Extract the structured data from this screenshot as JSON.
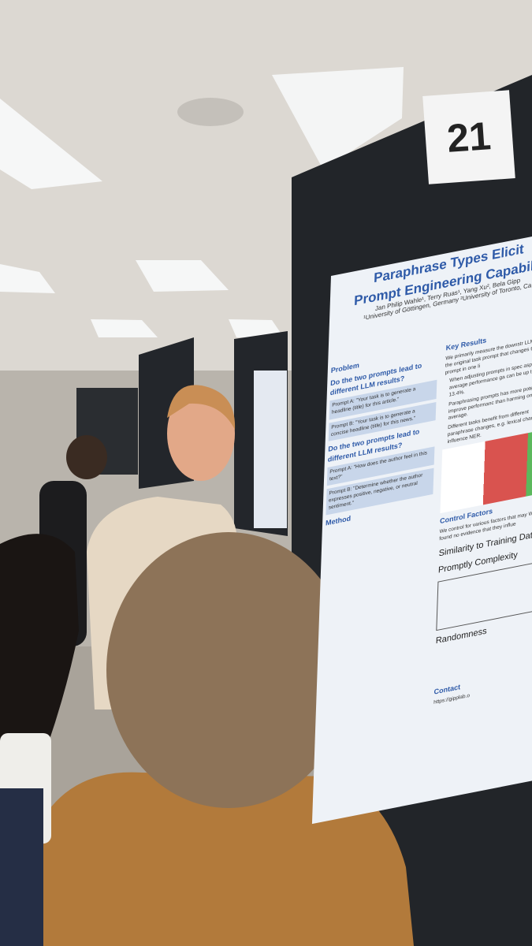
{
  "board_number": "21",
  "poster": {
    "title_line_1": "Paraphrase Types Elicit",
    "title_line_2": "Prompt Engineering Capabilit",
    "authors": "Jan Philip Wahle¹, Terry Ruas¹, Yang Xu², Bela Gipp",
    "affiliations": "¹University of Göttingen, Germany  ²University of Toronto, Ca",
    "left_column": {
      "problem": "Problem",
      "question_1": "Do the two prompts lead to different LLM results?",
      "prompt_a_1": "Prompt A: \"Your task is to generate a headline (title) for this article.\"",
      "prompt_b_1": "Prompt B: \"Your task is to generate a concise headline (title) for this news.\"",
      "question_2": "Do the two prompts lead to different LLM results?",
      "prompt_a_2": "Prompt A: \"How does the author feel in this text?\"",
      "prompt_b_2": "Prompt B: \"Determine whether the author expresses positive, negative, or neutral sentiment.\"",
      "method": "Method"
    },
    "right_column": {
      "key_results": "Key Results",
      "key_results_text": "We primarily measure the downstr LLM with the original task prompt that changes that prompt in one li",
      "results": [
        "When adjusting prompts in spec aspects, average performance ga can be up to 13.4%.",
        "Paraphrasing prompts has more potential to improve performanc than harming on average.",
        "Different tasks benefit from different paraphrase changes, e.g. lexical changes influence NER."
      ],
      "control_factors": "Control Factors",
      "control_text": "We control for various factors that may We found no evidence that they influe",
      "similarity": "Similarity to Training Data",
      "complexity": "Promptly Complexity",
      "randomness": "Randomness",
      "contact": "Contact",
      "url": "https://gipplab.o"
    }
  }
}
